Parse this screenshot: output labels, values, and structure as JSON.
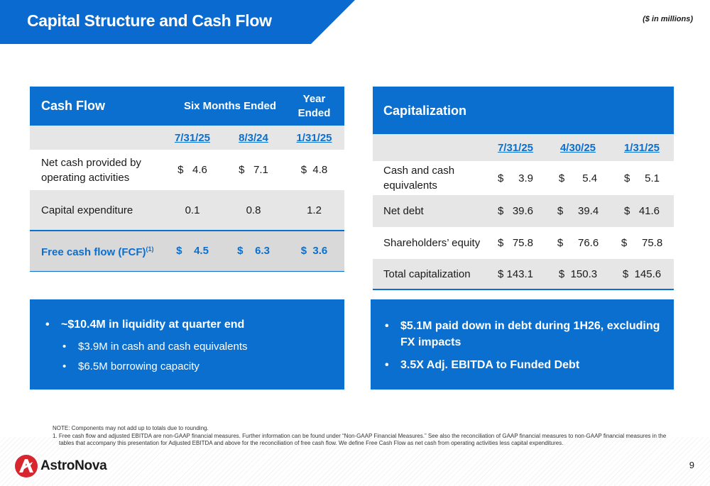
{
  "header": {
    "title": "Capital Structure and Cash Flow",
    "units_note": "($ in millions)"
  },
  "cash_flow": {
    "title": "Cash Flow",
    "six_months_label": "Six Months Ended",
    "year_ended_label_1": "Year",
    "year_ended_label_2": "Ended",
    "dates": [
      "7/31/25",
      "8/3/24",
      "1/31/25"
    ],
    "rows": [
      {
        "label_1": "Net cash provided by",
        "label_2": "operating activities",
        "values": [
          "$   4.6",
          "$   7.1",
          "$  4.8"
        ]
      },
      {
        "label": "Capital expenditure",
        "values": [
          "0.1",
          "0.8",
          "1.2"
        ]
      },
      {
        "label": "Free cash flow (FCF)",
        "footnote": "(1)",
        "values": [
          "$    4.5",
          "$    6.3",
          "$  3.6"
        ]
      }
    ]
  },
  "capitalization": {
    "title": "Capitalization",
    "dates": [
      "7/31/25",
      "4/30/25",
      "1/31/25"
    ],
    "rows": [
      {
        "label_1": "Cash and cash",
        "label_2": "equivalents",
        "values": [
          "$     3.9",
          "$      5.4",
          "$     5.1"
        ]
      },
      {
        "label": "Net debt",
        "values": [
          "$   39.6",
          "$     39.4",
          "$   41.6"
        ]
      },
      {
        "label": "Shareholders’ equity",
        "values": [
          "$   75.8",
          "$     76.6",
          "$     75.8"
        ]
      },
      {
        "label": "Total capitalization",
        "values": [
          "$ 143.1",
          "$  150.3",
          "$  145.6"
        ]
      }
    ]
  },
  "liquidity_box": {
    "main": "~$10.4M in liquidity at quarter end",
    "subs": [
      "$3.9M in cash and cash equivalents",
      "$6.5M borrowing capacity"
    ]
  },
  "debt_box": {
    "bullet_1_line_1": "$5.1M paid down in debt during 1H26, excluding",
    "bullet_1_line_2": "FX impacts",
    "bullet_2": "3.5X Adj. EBITDA to Funded Debt"
  },
  "footer": {
    "note": "NOTE: Components may not add up to totals due to rounding.",
    "footnote_1": "1. Free cash flow and adjusted EBITDA are non-GAAP financial measures. Further information can be found under “Non-GAAP Financial Measures.” See also the reconciliation of GAAP financial measures to non-GAAP financial measures in the tables that accompany this presentation for Adjusted EBITDA and above for the reconciliation of free cash flow. We define Free Cash Flow as net cash from operating activities less capital expenditures.",
    "logo_text": "AstroNova",
    "page_number": "9"
  },
  "colors": {
    "brand_blue": "#0a6fce",
    "band_blue": "#0b6ad0",
    "logo_red": "#d7262e",
    "row_gray": "#e6e6e6"
  }
}
